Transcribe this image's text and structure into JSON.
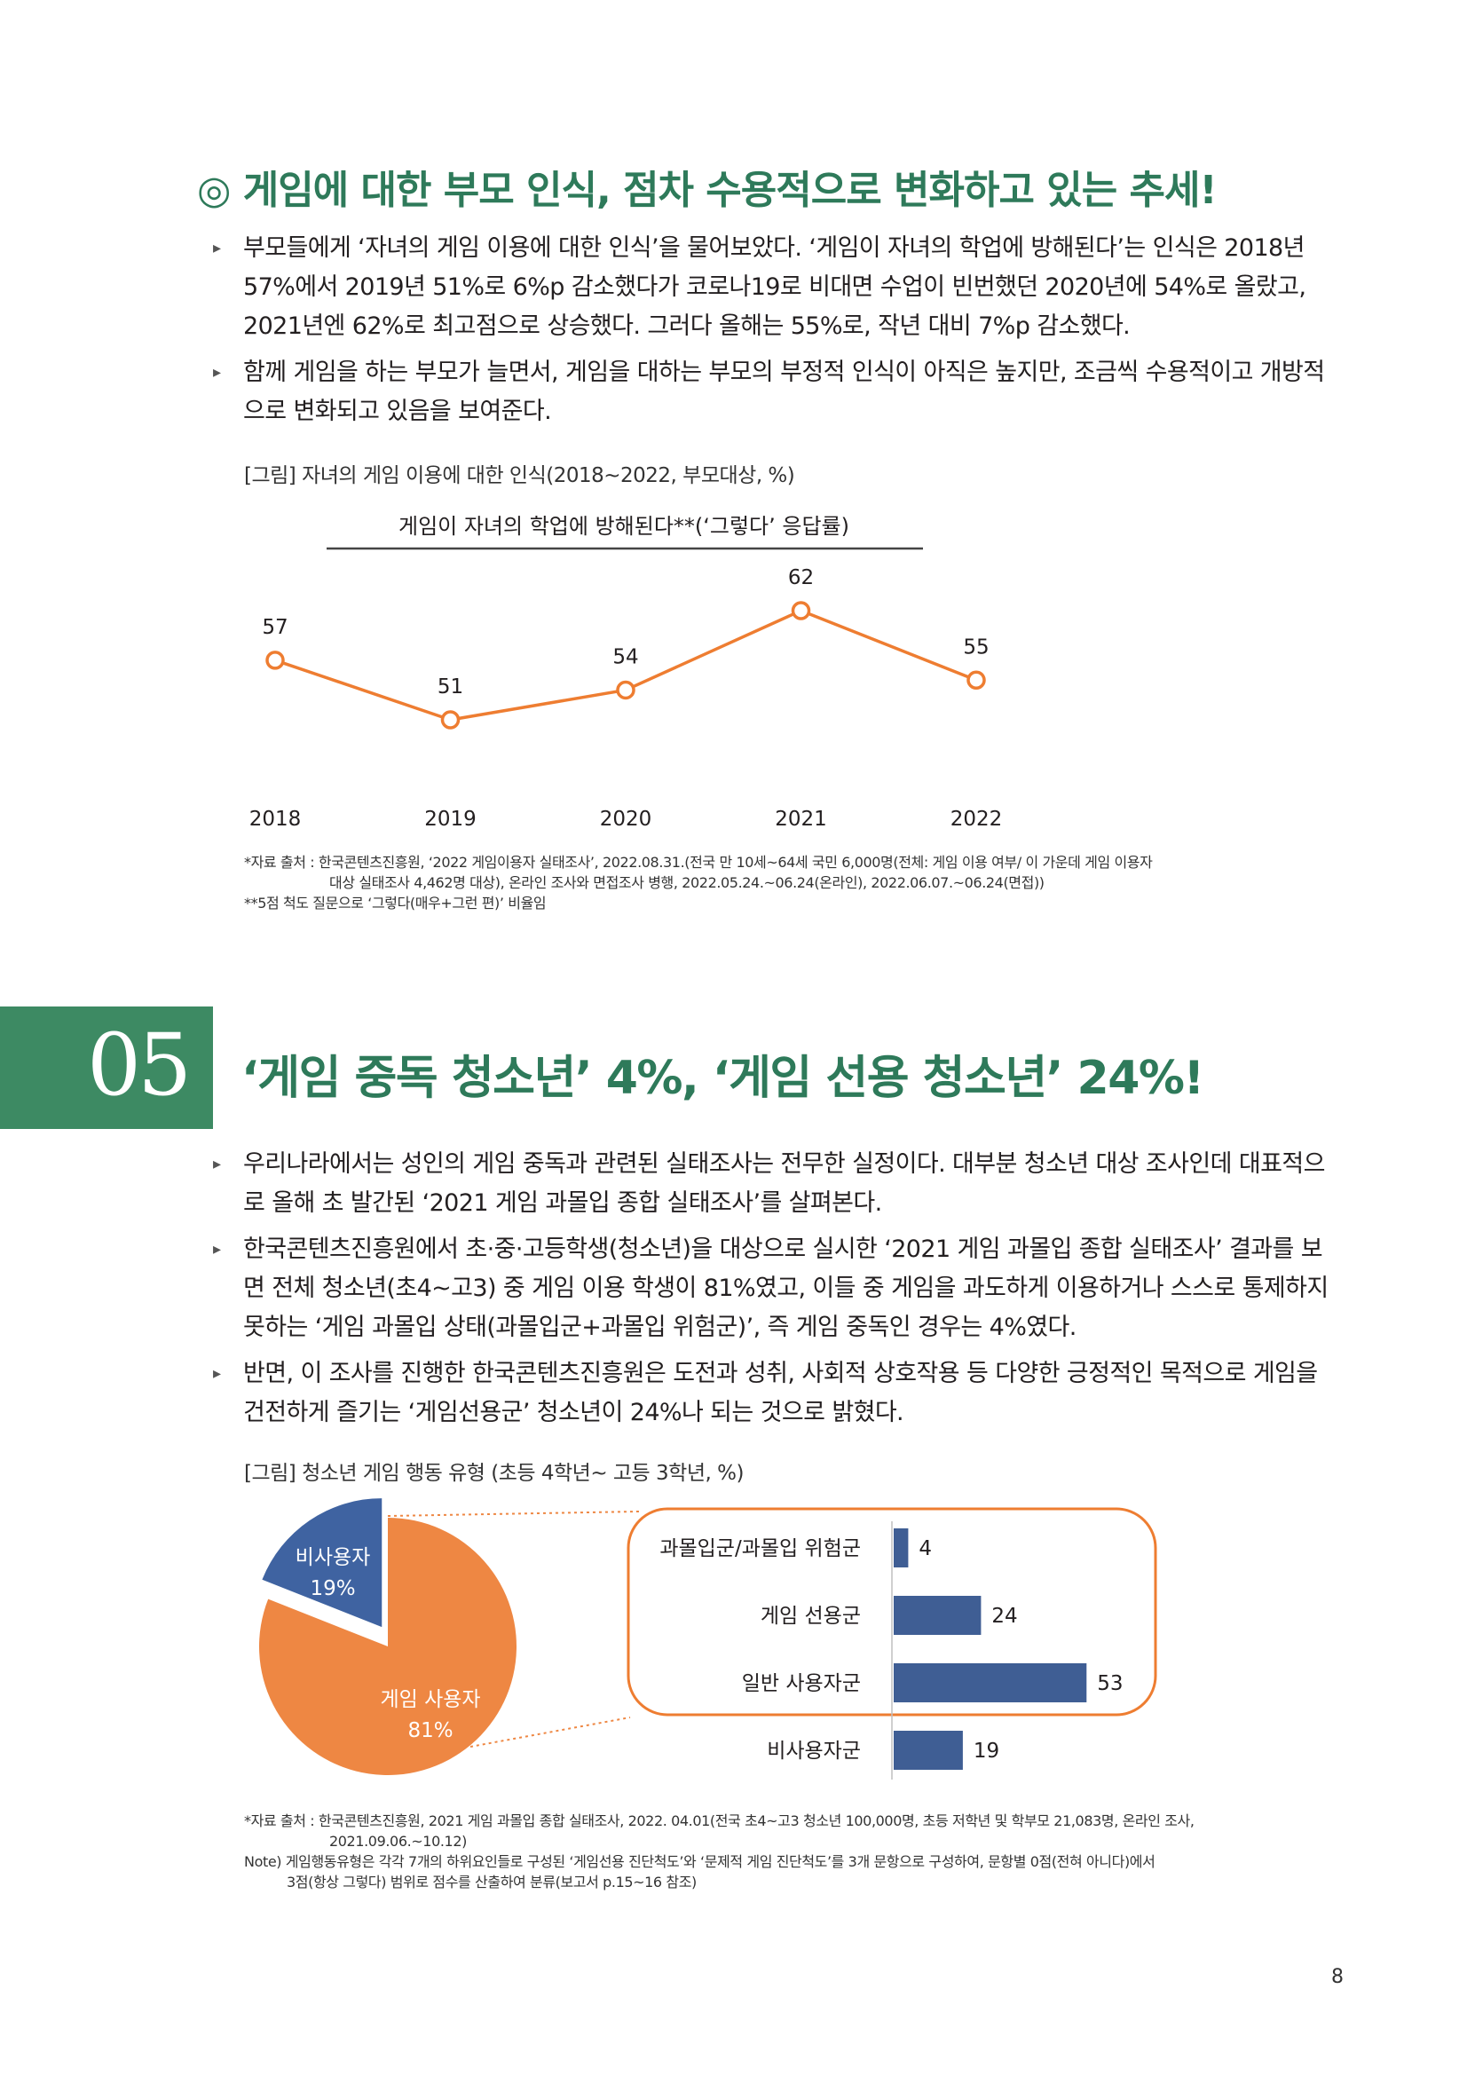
{
  "section1": {
    "heading": "◎ 게임에 대한 부모 인식, 점차 수용적으로 변화하고 있는 추세!",
    "bullets": [
      "부모들에게 ‘자녀의 게임 이용에 대한 인식’을 물어보았다. ‘게임이 자녀의 학업에 방해된다’는 인식은 2018년 57%에서 2019년 51%로 6%p 감소했다가 코로나19로 비대면 수업이 빈번했던 2020년에 54%로 올랐고, 2021년엔 62%로 최고점으로 상승했다. 그러다 올해는 55%로, 작년 대비 7%p 감소했다.",
      "함께 게임을 하는 부모가 늘면서, 게임을 대하는 부모의 부정적 인식이 아직은 높지만, 조금씩 수용적이고 개방적으로 변화되고 있음을 보여준다."
    ],
    "figure_caption": "[그림] 자녀의 게임 이용에 대한 인식(2018~2022, 부모대상, %)",
    "source_lines": [
      "*자료 출처 : 한국콘텐츠진흥원, ‘2022 게임이용자 실태조사’, 2022.08.31.(전국 만 10세~64세 국민 6,000명(전체: 게임 이용 여부/ 이 가운데 게임 이용자",
      "대상 실태조사 4,462명 대상), 온라인 조사와 면접조사 병행, 2022.05.24.~06.24(온라인), 2022.06.07.~06.24(면접))",
      "**5점 척도 질문으로 ‘그렇다(매우+그런 편)’ 비율임"
    ]
  },
  "chart_data": [
    {
      "type": "line",
      "title": "게임이 자녀의 학업에 방해된다**(‘그렇다’ 응답률)",
      "categories": [
        "2018",
        "2019",
        "2020",
        "2021",
        "2022"
      ],
      "values": [
        57,
        51,
        54,
        62,
        55
      ],
      "value_labels": [
        "57",
        "51",
        "54",
        "62",
        "55"
      ],
      "ylim": [
        45,
        65
      ],
      "color": "#ee7d31",
      "grid": false
    },
    {
      "type": "pie",
      "labels": [
        "비사용자",
        "게임 사용자"
      ],
      "values": [
        19,
        81
      ],
      "value_labels": [
        "19%",
        "81%"
      ],
      "colors": [
        "#3f63a1",
        "#ee8743"
      ],
      "exploded": "비사용자"
    },
    {
      "type": "bar",
      "orientation": "horizontal",
      "categories": [
        "과몰입군/과몰입 위험군",
        "게임 선용군",
        "일반 사용자군",
        "비사용자군"
      ],
      "values": [
        4,
        24,
        53,
        19
      ],
      "value_labels": [
        "4",
        "24",
        "53",
        "19"
      ],
      "color": "#3f5e94",
      "highlight": [
        "과몰입군/과몰입 위험군",
        "게임 선용군",
        "일반 사용자군"
      ],
      "highlight_color": "#ee7d31"
    }
  ],
  "section2": {
    "number": "05",
    "heading": "‘게임 중독 청소년’ 4%, ‘게임 선용 청소년’ 24%!",
    "bullets": [
      "우리나라에서는 성인의 게임 중독과 관련된 실태조사는 전무한 실정이다. 대부분 청소년 대상 조사인데 대표적으로 올해 초 발간된 ‘2021 게임 과몰입 종합 실태조사’를 살펴본다.",
      "한국콘텐츠진흥원에서 초·중·고등학생(청소년)을 대상으로 실시한 ‘2021 게임 과몰입 종합 실태조사’ 결과를 보면 전체 청소년(초4~고3) 중 게임 이용 학생이 81%였고, 이들 중 게임을 과도하게 이용하거나 스스로 통제하지 못하는 ‘게임 과몰입 상태(과몰입군+과몰입 위험군)’, 즉 게임 중독인 경우는 4%였다.",
      "반면, 이 조사를 진행한 한국콘텐츠진흥원은 도전과 성취, 사회적 상호작용 등 다양한 긍정적인 목적으로 게임을 건전하게 즐기는 ‘게임선용군’ 청소년이 24%나 되는 것으로 밝혔다."
    ],
    "figure_caption": "[그림] 청소년 게임 행동 유형 (초등 4학년~ 고등 3학년, %)",
    "source_lines": [
      "*자료 출처 : 한국콘텐츠진흥원, 2021 게임 과몰입 종합 실태조사, 2022. 04.01(전국 초4~고3 청소년 100,000명, 초등 저학년 및 학부모 21,083명, 온라인 조사,",
      "2021.09.06.~10.12)",
      "Note) 게임행동유형은 각각 7개의 하위요인들로 구성된 ‘게임선용 진단척도’와 ‘문제적 게임 진단척도’를 3개 문항으로 구성하여, 문항별 0점(전혀 아니다)에서",
      "3점(항상 그렇다) 범위로 점수를 산출하여 분류(보고서 p.15~16 참조)"
    ]
  },
  "page_number": "8"
}
